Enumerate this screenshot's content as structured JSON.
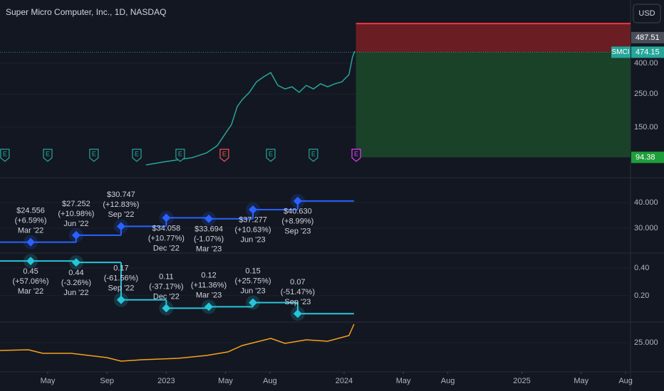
{
  "currency": "USD",
  "chart_data": [
    {
      "type": "line",
      "title": "Super Micro Computer, Inc., 1D, NASDAQ",
      "log": true,
      "grid": true,
      "ylim": [
        77,
        762
      ],
      "yticks": [
        {
          "value": 400,
          "label": "400.00"
        },
        {
          "value": 250,
          "label": "250.00"
        },
        {
          "value": 150,
          "label": "150.00"
        }
      ],
      "series": [
        {
          "name": "SMCI",
          "color": "#26a69a",
          "x": [
            10.63,
            11.84,
            12.8,
            13.76,
            14.72,
            15.44,
            15.92,
            16.4,
            16.79,
            17.13,
            17.61,
            18.09,
            18.57,
            19.05,
            19.53,
            20.01,
            20.49,
            20.97,
            21.45,
            21.93,
            22.41,
            22.89,
            23.37,
            23.85,
            24.33,
            24.57,
            24.72
          ],
          "values": [
            84,
            88,
            91,
            94,
            101,
            113,
            133,
            156,
            206,
            229,
            256,
            301,
            325,
            347,
            285,
            270,
            279,
            256,
            285,
            270,
            292,
            279,
            292,
            301,
            336,
            441,
            482
          ]
        }
      ],
      "last_price": 474.15,
      "high_price": 487.51,
      "zone_start": 24.8,
      "zones": [
        {
          "from": 474.15,
          "to": 736,
          "color": "#7a1f22"
        },
        {
          "from": 474.15,
          "to": 94.38,
          "color": "#1b4a2a"
        }
      ],
      "earnings": {
        "label": "E",
        "x": [
          1.11,
          4.0,
          7.12,
          10.01,
          12.94,
          15.92,
          19.05,
          21.93,
          24.82
        ],
        "colors": [
          "#26a69a",
          "#26a69a",
          "#26a69a",
          "#26a69a",
          "#26a69a",
          "#ef5350",
          "#26a69a",
          "#26a69a",
          "#e040fb"
        ]
      }
    },
    {
      "type": "step",
      "color": "#2962ff",
      "grid": true,
      "ylim": [
        20.56,
        44.17
      ],
      "yticks": [
        {
          "value": 40,
          "label": "40.000"
        },
        {
          "value": 30,
          "label": "30.000"
        }
      ],
      "x": [
        2.85,
        5.92,
        8.95,
        12.0,
        14.87,
        17.85,
        20.87
      ],
      "end_x": 24.67,
      "values": [
        24.556,
        27.252,
        30.747,
        34.058,
        33.694,
        37.277,
        40.63
      ],
      "value_labels": [
        "$24.556",
        "$27.252",
        "$30.747",
        "$34.058",
        "$33.694",
        "$37.277",
        "$40.630"
      ],
      "changes": [
        "(+6.59%)",
        "(+10.98%)",
        "(+12.83%)",
        "(+10.77%)",
        "(-1.07%)",
        "(+10.63%)",
        "(+8.99%)"
      ],
      "periods": [
        "Mar '22",
        "Jun '22",
        "Sep '22",
        "Dec '22",
        "Mar '23",
        "Jun '23",
        "Sep '23"
      ]
    },
    {
      "type": "step",
      "color": "#26c6da",
      "grid": true,
      "ylim": [
        0.015,
        0.497
      ],
      "yticks": [
        {
          "value": 0.4,
          "label": "0.40"
        },
        {
          "value": 0.2,
          "label": "0.20"
        }
      ],
      "x": [
        2.85,
        5.92,
        8.95,
        12.0,
        14.87,
        17.85,
        20.87
      ],
      "end_x": 24.67,
      "values": [
        0.45,
        0.44,
        0.17,
        0.11,
        0.12,
        0.15,
        0.07
      ],
      "changes": [
        "(+57.06%)",
        "(-3.26%)",
        "(-61.56%)",
        "(-37.17%)",
        "(+11.36%)",
        "(+25.75%)",
        "(-51.47%)"
      ],
      "periods": [
        "Mar '22",
        "Jun '22",
        "Sep '22",
        "Dec '22",
        "Mar '23",
        "Jun '23",
        "Sep '23"
      ]
    },
    {
      "type": "line",
      "grid": true,
      "ylim": [
        17.4,
        30.4
      ],
      "yticks": [
        {
          "value": 25,
          "label": "25.000"
        }
      ],
      "series": [
        {
          "color": "#f7a21b",
          "x": [
            0.78,
            2.7,
            3.66,
            5.59,
            7.99,
            8.95,
            10.39,
            12.8,
            14.72,
            16.16,
            17.13,
            19.05,
            20.01,
            21.45,
            22.89,
            24.33,
            24.67
          ],
          "values": [
            22.8,
            23.0,
            22.0,
            22.0,
            20.8,
            19.8,
            20.2,
            20.6,
            21.4,
            22.4,
            24.2,
            26.2,
            24.8,
            25.8,
            25.4,
            27.0,
            30.2
          ]
        }
      ],
      "xlim": [
        0.78,
        43.33
      ],
      "xticks": [
        {
          "value": 4,
          "label": "May"
        },
        {
          "value": 8,
          "label": "Sep"
        },
        {
          "value": 12,
          "label": "2023"
        },
        {
          "value": 16,
          "label": "May"
        },
        {
          "value": 19,
          "label": "Aug"
        },
        {
          "value": 24,
          "label": "2024"
        },
        {
          "value": 28,
          "label": "May"
        },
        {
          "value": 31,
          "label": "Aug"
        },
        {
          "value": 36,
          "label": "2025"
        },
        {
          "value": 40,
          "label": "May"
        },
        {
          "value": 43,
          "label": "Aug"
        }
      ]
    }
  ]
}
